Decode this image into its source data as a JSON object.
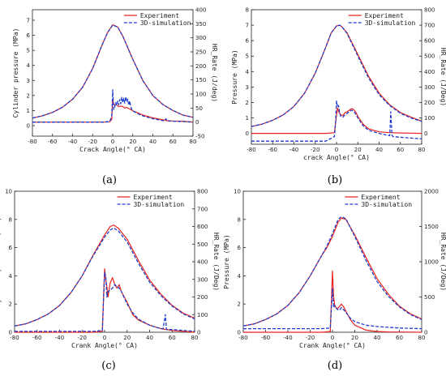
{
  "legend": {
    "experiment": "Experiment",
    "simulation": "3D-simulation"
  },
  "colors": {
    "experiment": "#e8231f",
    "simulation": "#1f3ccf"
  },
  "chart_data": [
    {
      "type": "line",
      "panel_label": "(a)",
      "xlabel": "Crack Angle(° CA)",
      "ylabel": "Cylinder pressure (MPa)",
      "y2label": "HR_Rate (J/deg)",
      "xlim": [
        -80,
        80
      ],
      "xticks": [
        "-80",
        "-60",
        "-40",
        "-20",
        "0",
        "20",
        "40",
        "60",
        "80"
      ],
      "ylim": [
        -0.7,
        7.7
      ],
      "yticks": [
        "0",
        "1",
        "2",
        "3",
        "4",
        "5",
        "6",
        "7"
      ],
      "y2lim": [
        -50,
        400
      ],
      "y2ticks": [
        "-50",
        "0",
        "50",
        "100",
        "150",
        "200",
        "250",
        "300",
        "350",
        "400"
      ],
      "series": [
        {
          "name": "Experiment",
          "axis": "left",
          "x": [
            -80,
            -70,
            -60,
            -50,
            -40,
            -30,
            -20,
            -10,
            -5,
            0,
            5,
            10,
            20,
            30,
            40,
            50,
            60,
            70,
            80
          ],
          "values": [
            0.5,
            0.65,
            0.88,
            1.22,
            1.75,
            2.55,
            3.8,
            5.45,
            6.2,
            6.7,
            6.55,
            5.95,
            4.4,
            3.0,
            2.0,
            1.4,
            1.0,
            0.7,
            0.55
          ]
        },
        {
          "name": "3D-simulation",
          "axis": "left",
          "x": [
            -80,
            -70,
            -60,
            -50,
            -40,
            -30,
            -20,
            -10,
            -5,
            0,
            5,
            10,
            20,
            30,
            40,
            50,
            60,
            70,
            80
          ],
          "values": [
            0.5,
            0.65,
            0.88,
            1.22,
            1.75,
            2.55,
            3.8,
            5.45,
            6.2,
            6.68,
            6.55,
            5.95,
            4.4,
            3.0,
            2.0,
            1.4,
            1.0,
            0.7,
            0.55
          ]
        },
        {
          "name": "Experiment",
          "axis": "right",
          "x": [
            -80,
            -10,
            -3,
            -1,
            0,
            1,
            2,
            4,
            6,
            8,
            10,
            12,
            14,
            16,
            18,
            20,
            25,
            30,
            40,
            50,
            52,
            53,
            54,
            60,
            70,
            80
          ],
          "values": [
            0,
            0,
            1,
            10,
            80,
            65,
            60,
            62,
            55,
            57,
            55,
            50,
            52,
            48,
            45,
            40,
            33,
            25,
            15,
            8,
            7,
            6,
            5,
            4,
            3,
            0
          ]
        },
        {
          "name": "3D-simulation",
          "axis": "right",
          "x": [
            -80,
            -10,
            -3,
            -1,
            0,
            1,
            2,
            3,
            4,
            5,
            6,
            7,
            8,
            9,
            10,
            11,
            12,
            13,
            14,
            15,
            16,
            17,
            18,
            19,
            20,
            25,
            30,
            40,
            50,
            52,
            53,
            54,
            55,
            60,
            70,
            80
          ],
          "values": [
            0,
            0,
            2,
            20,
            115,
            45,
            55,
            70,
            60,
            75,
            62,
            80,
            65,
            88,
            70,
            85,
            68,
            90,
            72,
            82,
            60,
            75,
            55,
            45,
            40,
            30,
            22,
            12,
            5,
            5,
            12,
            5,
            4,
            3,
            2,
            0
          ]
        }
      ]
    },
    {
      "type": "line",
      "panel_label": "(b)",
      "xlabel": "crack Angle(° CA)",
      "ylabel": "Pressure (MPa)",
      "y2label": "HR_Rate (J/Deg)",
      "xlim": [
        -80,
        80
      ],
      "xticks": [
        "-80",
        "-60",
        "-40",
        "-20",
        "0",
        "20",
        "40",
        "60",
        "80"
      ],
      "ylim": [
        -0.7,
        8
      ],
      "yticks": [
        "0",
        "1",
        "2",
        "3",
        "4",
        "5",
        "6",
        "7",
        "8"
      ],
      "y2lim": [
        -70,
        800
      ],
      "y2ticks": [
        "0",
        "100",
        "200",
        "300",
        "400",
        "500",
        "600",
        "700",
        "800"
      ],
      "series": [
        {
          "name": "Experiment",
          "axis": "left",
          "x": [
            -80,
            -70,
            -60,
            -50,
            -40,
            -30,
            -20,
            -10,
            -5,
            0,
            3,
            5,
            10,
            20,
            30,
            40,
            50,
            60,
            70,
            80
          ],
          "values": [
            0.45,
            0.6,
            0.85,
            1.2,
            1.75,
            2.6,
            3.9,
            5.6,
            6.5,
            6.95,
            7.0,
            6.9,
            6.5,
            5.1,
            3.7,
            2.6,
            1.85,
            1.35,
            1.05,
            0.8
          ]
        },
        {
          "name": "3D-simulation",
          "axis": "left",
          "x": [
            -80,
            -70,
            -60,
            -50,
            -40,
            -30,
            -20,
            -10,
            -5,
            0,
            3,
            5,
            10,
            20,
            30,
            40,
            50,
            60,
            70,
            80
          ],
          "values": [
            0.45,
            0.6,
            0.85,
            1.2,
            1.75,
            2.6,
            3.9,
            5.6,
            6.5,
            6.95,
            7.0,
            6.9,
            6.45,
            5.0,
            3.6,
            2.5,
            1.8,
            1.3,
            1.0,
            0.78
          ]
        },
        {
          "name": "Experiment",
          "axis": "right",
          "x": [
            -80,
            -10,
            -2,
            0,
            1,
            2,
            4,
            6,
            8,
            10,
            12,
            14,
            16,
            18,
            20,
            25,
            30,
            40,
            50,
            60,
            70,
            80
          ],
          "values": [
            0,
            0,
            5,
            120,
            165,
            140,
            120,
            115,
            135,
            140,
            150,
            160,
            155,
            140,
            110,
            60,
            30,
            10,
            5,
            3,
            2,
            0
          ]
        },
        {
          "name": "3D-simulation",
          "axis": "right",
          "x": [
            -80,
            -10,
            -2,
            -1,
            0,
            1,
            2,
            3,
            4,
            6,
            8,
            10,
            12,
            14,
            16,
            18,
            20,
            25,
            30,
            40,
            50,
            51,
            52,
            53,
            60,
            70,
            80
          ],
          "values": [
            -50,
            -50,
            -20,
            60,
            210,
            170,
            180,
            130,
            110,
            105,
            120,
            130,
            140,
            150,
            145,
            125,
            100,
            50,
            20,
            0,
            -15,
            140,
            -10,
            -20,
            -25,
            -30,
            -35
          ]
        }
      ]
    },
    {
      "type": "line",
      "panel_label": "(c)",
      "xlabel": "Crank Angle(° CA)",
      "ylabel": "cylinder pressure (MPa)",
      "y2label": "HR_Rate (J/Deg)",
      "xlim": [
        -80,
        80
      ],
      "xticks": [
        "-80",
        "-60",
        "-40",
        "-20",
        "0",
        "20",
        "40",
        "60",
        "80"
      ],
      "ylim": [
        0,
        10
      ],
      "yticks": [
        "0",
        "2",
        "4",
        "6",
        "8",
        "10"
      ],
      "y2lim": [
        0,
        800
      ],
      "y2ticks": [
        "0",
        "100",
        "200",
        "300",
        "400",
        "500",
        "600",
        "700",
        "800"
      ],
      "series": [
        {
          "name": "Experiment",
          "axis": "left",
          "x": [
            -80,
            -70,
            -60,
            -50,
            -40,
            -30,
            -20,
            -10,
            -5,
            0,
            5,
            8,
            12,
            20,
            30,
            40,
            50,
            60,
            70,
            80
          ],
          "values": [
            0.45,
            0.6,
            0.9,
            1.3,
            1.9,
            2.8,
            4.0,
            5.5,
            6.2,
            6.9,
            7.5,
            7.6,
            7.4,
            6.6,
            5.1,
            3.7,
            2.7,
            1.9,
            1.35,
            1.0
          ]
        },
        {
          "name": "3D-simulation",
          "axis": "left",
          "x": [
            -80,
            -70,
            -60,
            -50,
            -40,
            -30,
            -20,
            -10,
            -5,
            0,
            5,
            8,
            12,
            20,
            30,
            40,
            50,
            60,
            70,
            80
          ],
          "values": [
            0.45,
            0.6,
            0.9,
            1.3,
            1.9,
            2.8,
            4.0,
            5.45,
            6.1,
            6.75,
            7.25,
            7.4,
            7.2,
            6.4,
            4.9,
            3.55,
            2.6,
            1.85,
            1.3,
            0.95
          ]
        },
        {
          "name": "Experiment",
          "axis": "right",
          "x": [
            -80,
            -10,
            -2,
            0,
            1,
            2,
            3,
            5,
            7,
            9,
            11,
            13,
            15,
            20,
            25,
            30,
            40,
            50,
            60,
            70,
            80
          ],
          "values": [
            0,
            0,
            5,
            360,
            300,
            260,
            200,
            280,
            310,
            270,
            250,
            270,
            230,
            170,
            100,
            70,
            40,
            20,
            10,
            5,
            0
          ]
        },
        {
          "name": "3D-simulation",
          "axis": "right",
          "x": [
            -80,
            -10,
            -2,
            0,
            1,
            2,
            3,
            5,
            7,
            9,
            11,
            13,
            15,
            20,
            25,
            30,
            40,
            50,
            52,
            54,
            55,
            60,
            70,
            80
          ],
          "values": [
            5,
            5,
            10,
            340,
            320,
            200,
            230,
            240,
            250,
            270,
            260,
            250,
            230,
            160,
            110,
            75,
            40,
            20,
            20,
            100,
            15,
            15,
            10,
            5
          ]
        }
      ]
    },
    {
      "type": "line",
      "panel_label": "(d)",
      "xlabel": "Crank Angle(° CA)",
      "ylabel": "Pressure (MPa)",
      "y2label": "HR_Rate (J/Deg)",
      "xlim": [
        -80,
        80
      ],
      "xticks": [
        "-80",
        "-60",
        "-40",
        "-20",
        "0",
        "20",
        "40",
        "60",
        "80"
      ],
      "ylim": [
        0,
        10
      ],
      "yticks": [
        "0",
        "2",
        "4",
        "6",
        "8",
        "10"
      ],
      "y2lim": [
        0,
        2000
      ],
      "y2ticks": [
        "0",
        "500",
        "1000",
        "1500",
        "2000"
      ],
      "series": [
        {
          "name": "Experiment",
          "axis": "left",
          "x": [
            -80,
            -70,
            -60,
            -50,
            -40,
            -30,
            -20,
            -10,
            -5,
            0,
            5,
            8,
            12,
            20,
            30,
            40,
            50,
            60,
            70,
            80
          ],
          "values": [
            0.45,
            0.6,
            0.9,
            1.3,
            1.9,
            2.8,
            4.0,
            5.4,
            6.0,
            6.8,
            7.8,
            8.1,
            8.0,
            6.9,
            5.3,
            3.8,
            2.7,
            1.85,
            1.3,
            0.95
          ]
        },
        {
          "name": "3D-simulation",
          "axis": "left",
          "x": [
            -80,
            -70,
            -60,
            -50,
            -40,
            -30,
            -20,
            -10,
            -5,
            0,
            5,
            8,
            12,
            20,
            30,
            40,
            50,
            60,
            70,
            80
          ],
          "values": [
            0.45,
            0.6,
            0.9,
            1.3,
            1.9,
            2.8,
            4.0,
            5.4,
            6.1,
            7.0,
            8.0,
            8.2,
            8.05,
            6.8,
            5.1,
            3.6,
            2.55,
            1.8,
            1.25,
            0.9
          ]
        },
        {
          "name": "Experiment",
          "axis": "right",
          "x": [
            -80,
            -10,
            -2,
            0,
            1,
            2,
            4,
            6,
            8,
            10,
            12,
            14,
            16,
            20,
            30,
            40,
            50,
            60,
            70,
            80
          ],
          "values": [
            0,
            0,
            10,
            870,
            500,
            380,
            330,
            360,
            400,
            360,
            300,
            240,
            180,
            100,
            30,
            10,
            5,
            3,
            2,
            0
          ]
        },
        {
          "name": "3D-simulation",
          "axis": "right",
          "x": [
            -80,
            -10,
            -2,
            0,
            1,
            2,
            4,
            6,
            8,
            10,
            12,
            14,
            16,
            20,
            30,
            40,
            50,
            60,
            70,
            80
          ],
          "values": [
            50,
            50,
            60,
            620,
            350,
            380,
            330,
            310,
            350,
            320,
            280,
            240,
            200,
            150,
            100,
            80,
            70,
            60,
            55,
            50
          ]
        }
      ]
    }
  ]
}
